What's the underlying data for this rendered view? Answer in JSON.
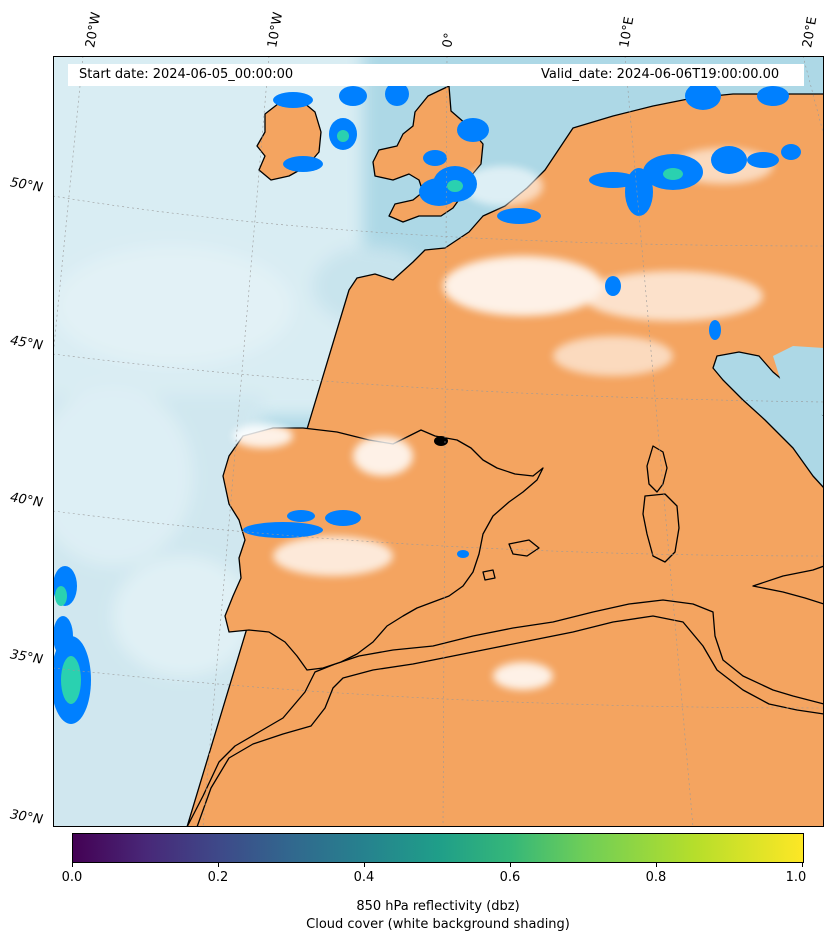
{
  "header": {
    "start_date": "Start date: 2024-06-05_00:00:00",
    "valid_date": "Valid_date: 2024-06-06T19:00:00.00"
  },
  "lon_labels": [
    "20°W",
    "10°W",
    "0°",
    "10°E",
    "20°E"
  ],
  "lat_labels": [
    "50°N",
    "45°N",
    "40°N",
    "35°N",
    "30°N"
  ],
  "colorbar": {
    "ticks": [
      "0.0",
      "0.2",
      "0.4",
      "0.6",
      "0.8",
      "1.0"
    ],
    "label_line1": "850 hPa reflectivity (dbz)",
    "label_line2": "Cloud cover (white background shading)",
    "colormap": "viridis"
  },
  "colors": {
    "land": "#f4a460",
    "sea": "#add8e6",
    "cloud": "#ffffff",
    "reflectivity_low": "#0080ff",
    "reflectivity_mid": "#2ad1b0",
    "coastline": "#000000"
  }
}
